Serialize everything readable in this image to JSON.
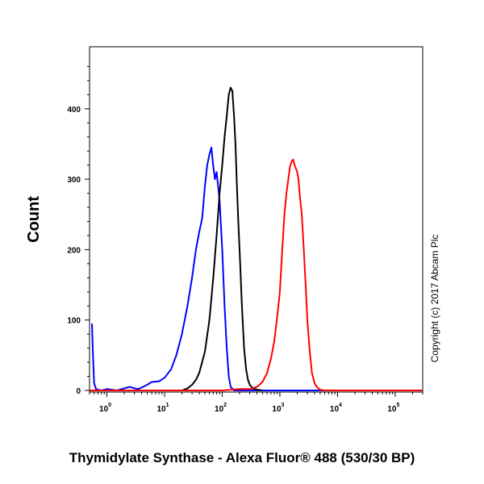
{
  "chart_data": {
    "type": "line",
    "xlabel": "Thymidylate Synthase - Alexa Fluor® 488 (530/30 BP)",
    "ylabel": "Count",
    "x_scale": "log",
    "xlim": [
      0.5,
      300000
    ],
    "ylim": [
      0,
      480
    ],
    "x_ticks": [
      {
        "base": "10",
        "exp": "0",
        "value": 1
      },
      {
        "base": "10",
        "exp": "1",
        "value": 10
      },
      {
        "base": "10",
        "exp": "2",
        "value": 100
      },
      {
        "base": "10",
        "exp": "3",
        "value": 1000
      },
      {
        "base": "10",
        "exp": "4",
        "value": 10000
      },
      {
        "base": "10",
        "exp": "5",
        "value": 100000
      }
    ],
    "y_ticks": [
      0,
      100,
      200,
      300,
      400
    ],
    "grid": false,
    "annotation": "Copyright (c) 2017 Abcam Plc",
    "series": [
      {
        "color": "#0000ff",
        "points": [
          [
            0.55,
            95
          ],
          [
            0.57,
            55
          ],
          [
            0.6,
            10
          ],
          [
            0.65,
            2
          ],
          [
            0.7,
            1
          ],
          [
            0.8,
            0
          ],
          [
            1.0,
            2
          ],
          [
            1.2,
            1
          ],
          [
            1.5,
            0
          ],
          [
            2.0,
            3
          ],
          [
            2.5,
            5
          ],
          [
            3.0,
            3
          ],
          [
            3.5,
            2
          ],
          [
            4.0,
            4
          ],
          [
            5.0,
            8
          ],
          [
            6.0,
            12
          ],
          [
            8.0,
            13
          ],
          [
            10,
            18
          ],
          [
            13,
            30
          ],
          [
            16,
            50
          ],
          [
            20,
            80
          ],
          [
            25,
            120
          ],
          [
            30,
            160
          ],
          [
            35,
            200
          ],
          [
            40,
            225
          ],
          [
            45,
            245
          ],
          [
            50,
            290
          ],
          [
            55,
            320
          ],
          [
            60,
            335
          ],
          [
            65,
            345
          ],
          [
            70,
            318
          ],
          [
            75,
            300
          ],
          [
            80,
            310
          ],
          [
            85,
            290
          ],
          [
            90,
            270
          ],
          [
            100,
            200
          ],
          [
            110,
            120
          ],
          [
            120,
            60
          ],
          [
            130,
            20
          ],
          [
            140,
            5
          ],
          [
            160,
            0
          ],
          [
            300000,
            0
          ]
        ]
      },
      {
        "color": "#000000",
        "points": [
          [
            20,
            0
          ],
          [
            25,
            3
          ],
          [
            30,
            8
          ],
          [
            35,
            15
          ],
          [
            40,
            25
          ],
          [
            50,
            55
          ],
          [
            60,
            100
          ],
          [
            70,
            160
          ],
          [
            80,
            220
          ],
          [
            90,
            280
          ],
          [
            100,
            320
          ],
          [
            110,
            360
          ],
          [
            120,
            390
          ],
          [
            130,
            420
          ],
          [
            140,
            430
          ],
          [
            150,
            425
          ],
          [
            160,
            390
          ],
          [
            170,
            350
          ],
          [
            180,
            290
          ],
          [
            190,
            240
          ],
          [
            200,
            200
          ],
          [
            220,
            120
          ],
          [
            240,
            60
          ],
          [
            260,
            30
          ],
          [
            280,
            15
          ],
          [
            300,
            8
          ],
          [
            340,
            3
          ],
          [
            400,
            1
          ],
          [
            500,
            0
          ]
        ]
      },
      {
        "color": "#ff0000",
        "points": [
          [
            0.5,
            0
          ],
          [
            100,
            0
          ],
          [
            200,
            2
          ],
          [
            300,
            2
          ],
          [
            400,
            5
          ],
          [
            500,
            12
          ],
          [
            600,
            25
          ],
          [
            700,
            45
          ],
          [
            800,
            70
          ],
          [
            900,
            105
          ],
          [
            1000,
            140
          ],
          [
            1100,
            200
          ],
          [
            1200,
            250
          ],
          [
            1300,
            280
          ],
          [
            1400,
            300
          ],
          [
            1500,
            318
          ],
          [
            1600,
            325
          ],
          [
            1700,
            328
          ],
          [
            1800,
            320
          ],
          [
            1900,
            315
          ],
          [
            2000,
            310
          ],
          [
            2100,
            300
          ],
          [
            2200,
            280
          ],
          [
            2400,
            250
          ],
          [
            2600,
            200
          ],
          [
            2800,
            150
          ],
          [
            3000,
            100
          ],
          [
            3300,
            55
          ],
          [
            3600,
            25
          ],
          [
            4000,
            10
          ],
          [
            4500,
            4
          ],
          [
            5000,
            1
          ],
          [
            6000,
            0
          ],
          [
            300000,
            0
          ]
        ]
      }
    ]
  }
}
